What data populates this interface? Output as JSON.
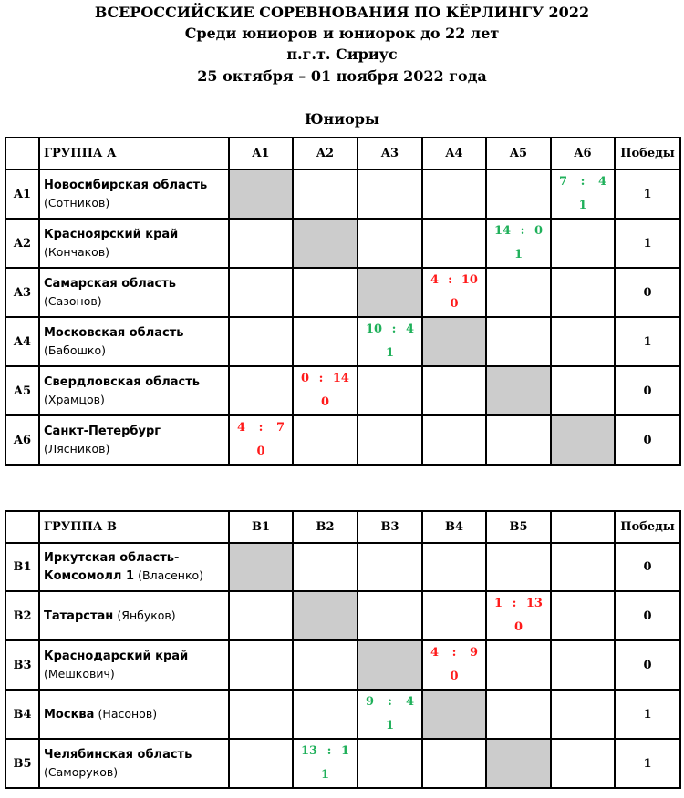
{
  "header": {
    "title": "ВСЕРОССИЙСКИЕ СОРЕВНОВАНИЯ ПО КЁРЛИНГУ 2022",
    "subtitle": "Среди юниоров и юниорок до 22 лет",
    "place": "п.г.т. Сириус",
    "dates": "25 октября – 01 ноября 2022 года",
    "section": "Юниоры"
  },
  "colors": {
    "win": "#1fb05a",
    "loss": "#ff1a1a",
    "self": "#cccccc"
  },
  "groups": [
    {
      "label": "ГРУППА А",
      "columns": [
        "A1",
        "A2",
        "A3",
        "A4",
        "A5",
        "A6"
      ],
      "wins_label": "Победы",
      "rows": [
        {
          "id": "A1",
          "team": "Новосибирская область",
          "skip": "(Сотников)",
          "wins": "1",
          "results": {
            "5": {
              "for": "7",
              "against": "4",
              "points": "1",
              "win": true
            }
          }
        },
        {
          "id": "A2",
          "team": "Красноярский край",
          "skip": "(Кончаков)",
          "wins": "1",
          "results": {
            "4": {
              "for": "14",
              "against": "0",
              "points": "1",
              "win": true
            }
          }
        },
        {
          "id": "A3",
          "team": "Самарская область",
          "skip": "(Сазонов)",
          "wins": "0",
          "results": {
            "3": {
              "for": "4",
              "against": "10",
              "points": "0",
              "win": false
            }
          }
        },
        {
          "id": "A4",
          "team": "Московская область",
          "skip": "(Бабошко)",
          "wins": "1",
          "results": {
            "2": {
              "for": "10",
              "against": "4",
              "points": "1",
              "win": true
            }
          }
        },
        {
          "id": "A5",
          "team": "Свердловская область",
          "skip": "(Храмцов)",
          "wins": "0",
          "results": {
            "1": {
              "for": "0",
              "against": "14",
              "points": "0",
              "win": false
            }
          }
        },
        {
          "id": "A6",
          "team": "Санкт-Петербург",
          "skip": "(Лясников)",
          "wins": "0",
          "results": {
            "0": {
              "for": "4",
              "against": "7",
              "points": "0",
              "win": false
            }
          }
        }
      ]
    },
    {
      "label": "ГРУППА В",
      "columns": [
        "B1",
        "B2",
        "B3",
        "B4",
        "B5",
        ""
      ],
      "wins_label": "Победы",
      "rows": [
        {
          "id": "B1",
          "team": "Иркутская область-Комсомолл 1",
          "skip": "(Власенко)",
          "wins": "0",
          "results": {}
        },
        {
          "id": "B2",
          "team": "Татарстан",
          "skip": "(Янбуков)",
          "wins": "0",
          "results": {
            "4": {
              "for": "1",
              "against": "13",
              "points": "0",
              "win": false
            }
          }
        },
        {
          "id": "B3",
          "team": "Краснодарский край",
          "skip": "(Мешкович)",
          "wins": "0",
          "results": {
            "3": {
              "for": "4",
              "against": "9",
              "points": "0",
              "win": false
            }
          }
        },
        {
          "id": "B4",
          "team": "Москва",
          "skip": "(Насонов)",
          "wins": "1",
          "results": {
            "2": {
              "for": "9",
              "against": "4",
              "points": "1",
              "win": true
            }
          }
        },
        {
          "id": "B5",
          "team": "Челябинская область",
          "skip": "(Саморуков)",
          "wins": "1",
          "results": {
            "1": {
              "for": "13",
              "against": "1",
              "points": "1",
              "win": true
            }
          }
        }
      ]
    }
  ]
}
